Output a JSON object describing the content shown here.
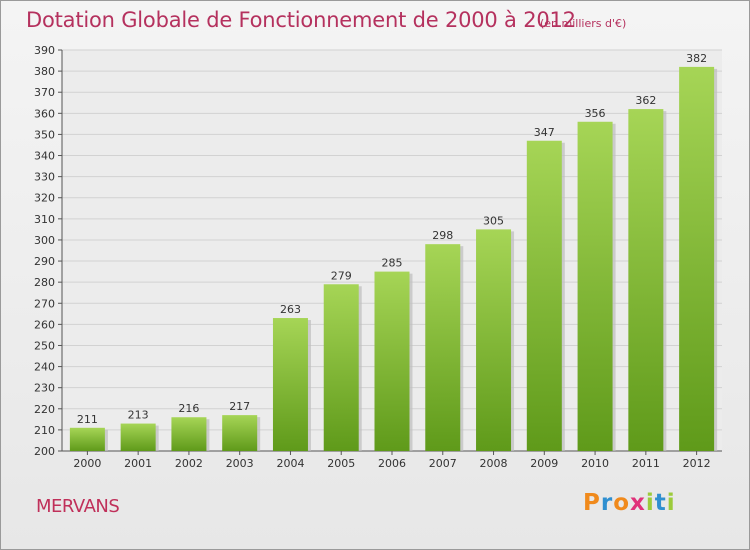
{
  "title": "Dotation Globale de Fonctionnement de 2000 à 2012",
  "unit_label": "(en milliers d'€)",
  "commune": "MERVANS",
  "logo": {
    "letters": [
      "P",
      "r",
      "o",
      "x",
      "i",
      "t",
      "i"
    ],
    "colors": [
      "#f08a1c",
      "#2f8fd0",
      "#f08a1c",
      "#e0327a",
      "#9ccb3b",
      "#2f8fd0",
      "#9ccb3b"
    ]
  },
  "colors": {
    "bar_top": "#a6d556",
    "bar_bottom": "#5f9a1a",
    "title": "#b5315e"
  },
  "chart_data": {
    "type": "bar",
    "categories": [
      "2000",
      "2001",
      "2002",
      "2003",
      "2004",
      "2005",
      "2006",
      "2007",
      "2008",
      "2009",
      "2010",
      "2011",
      "2012"
    ],
    "values": [
      211,
      213,
      216,
      217,
      263,
      279,
      285,
      298,
      305,
      347,
      356,
      362,
      382
    ],
    "value_labels": [
      "211",
      "213",
      "216",
      "217",
      "263",
      "279",
      "285",
      "298",
      "305",
      "347",
      "356",
      "362",
      "382"
    ],
    "title": "Dotation Globale de Fonctionnement de 2000 à 2012",
    "xlabel": "",
    "ylabel": "",
    "ylim": [
      200,
      390
    ],
    "yticks": [
      "200",
      "210",
      "220",
      "230",
      "240",
      "250",
      "260",
      "270",
      "280",
      "290",
      "300",
      "310",
      "320",
      "330",
      "340",
      "350",
      "360",
      "370",
      "380",
      "390"
    ],
    "grid": true,
    "legend": "none"
  }
}
